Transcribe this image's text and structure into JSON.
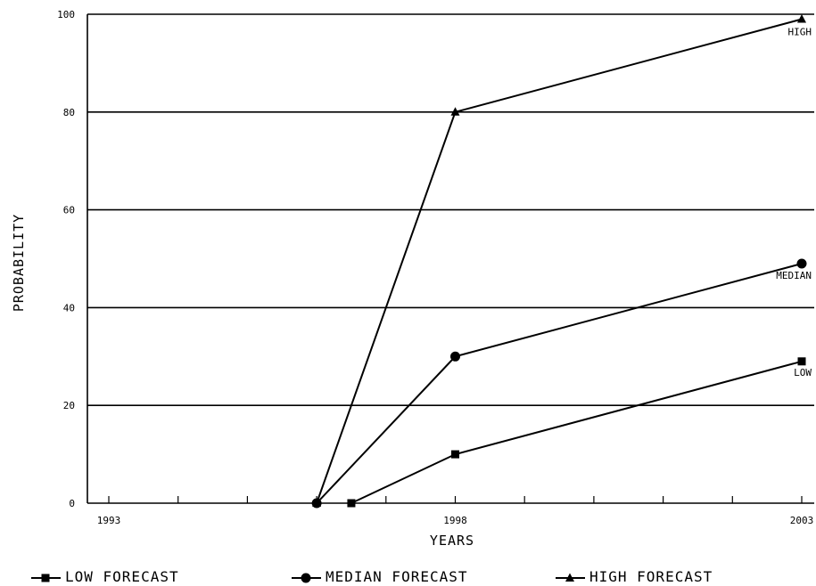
{
  "chart_data": {
    "type": "line",
    "xlabel": "YEARS",
    "ylabel": "PROBABILITY",
    "xlim": [
      1993,
      2003
    ],
    "ylim": [
      0,
      100
    ],
    "x_ticks": [
      1993,
      1998,
      2003
    ],
    "y_ticks": [
      0,
      20,
      40,
      60,
      80,
      100
    ],
    "grid": "horizontal",
    "legend_position": "bottom",
    "series": [
      {
        "name": "LOW FORECAST",
        "end_label": "LOW",
        "marker": "square",
        "points": [
          [
            1996.5,
            0
          ],
          [
            1998,
            10
          ],
          [
            2003,
            29
          ]
        ]
      },
      {
        "name": "MEDIAN FORECAST",
        "end_label": "MEDIAN",
        "marker": "circle",
        "points": [
          [
            1996,
            0
          ],
          [
            1998,
            30
          ],
          [
            2003,
            49
          ]
        ]
      },
      {
        "name": "HIGH FORECAST",
        "end_label": "HIGH",
        "marker": "triangle",
        "points": [
          [
            1996,
            0
          ],
          [
            1998,
            80
          ],
          [
            2003,
            99
          ]
        ]
      }
    ]
  }
}
